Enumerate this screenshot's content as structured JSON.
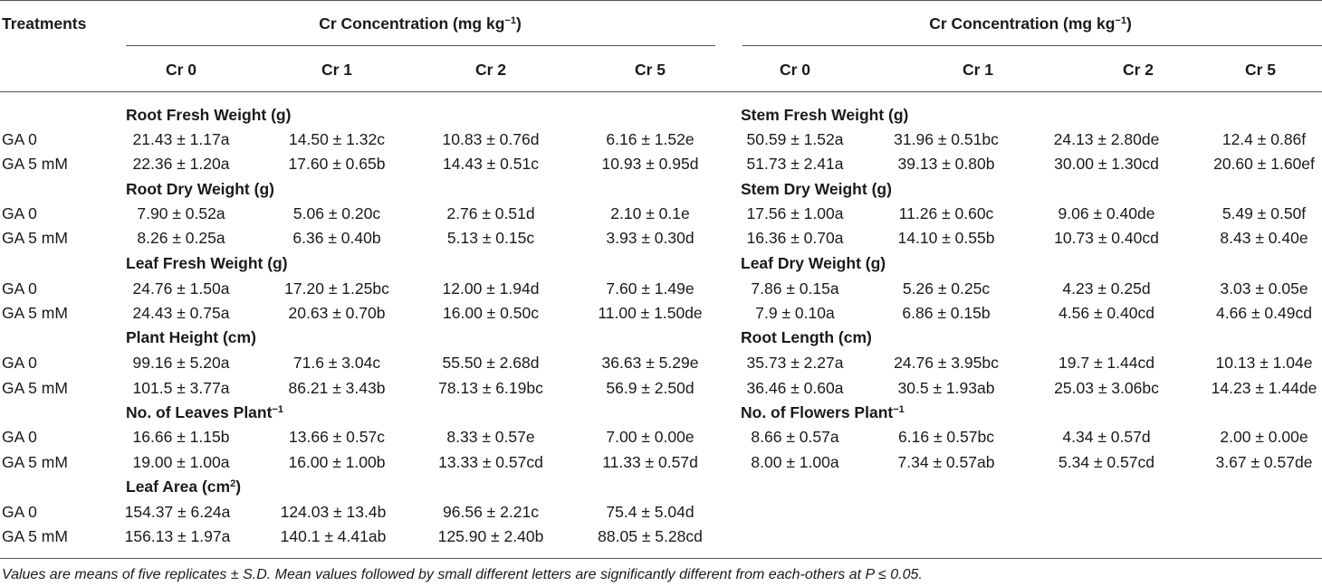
{
  "header": {
    "treatments_label": "Treatments",
    "group_left": {
      "text": "Cr Concentration (mg kg",
      "sup": "−1",
      "close": ")"
    },
    "group_right": {
      "text": "Cr Concentration (mg kg",
      "sup": "−1",
      "close": ")"
    },
    "cols_left": [
      "Cr 0",
      "Cr 1",
      "Cr 2",
      "Cr 5"
    ],
    "cols_right": [
      "Cr 0",
      "Cr 1",
      "Cr 2",
      "Cr 5"
    ]
  },
  "blocks": [
    {
      "left": {
        "title": "Root Fresh Weight (g)",
        "sup": "",
        "rows": [
          {
            "label": "GA 0",
            "values": [
              "21.43 ± 1.17a",
              "14.50 ± 1.32c",
              "10.83 ± 0.76d",
              "6.16 ± 1.52e"
            ]
          },
          {
            "label": "GA 5 mM",
            "values": [
              "22.36 ± 1.20a",
              "17.60 ± 0.65b",
              "14.43 ± 0.51c",
              "10.93 ± 0.95d"
            ]
          }
        ]
      },
      "right": {
        "title": "Stem Fresh Weight (g)",
        "sup": "",
        "rows": [
          {
            "values": [
              "50.59 ± 1.52a",
              "31.96 ± 0.51bc",
              "24.13 ± 2.80de",
              "12.4 ± 0.86f"
            ]
          },
          {
            "values": [
              "51.73 ± 2.41a",
              "39.13 ± 0.80b",
              "30.00 ± 1.30cd",
              "20.60 ± 1.60ef"
            ]
          }
        ]
      }
    },
    {
      "left": {
        "title": "Root Dry Weight (g)",
        "sup": "",
        "rows": [
          {
            "label": "GA 0",
            "values": [
              "7.90 ± 0.52a",
              "5.06 ± 0.20c",
              "2.76 ± 0.51d",
              "2.10 ± 0.1e"
            ]
          },
          {
            "label": "GA 5 mM",
            "values": [
              "8.26 ± 0.25a",
              "6.36 ± 0.40b",
              "5.13 ± 0.15c",
              "3.93 ± 0.30d"
            ]
          }
        ]
      },
      "right": {
        "title": "Stem Dry Weight (g)",
        "sup": "",
        "rows": [
          {
            "values": [
              "17.56 ± 1.00a",
              "11.26 ± 0.60c",
              "9.06 ± 0.40de",
              "5.49 ± 0.50f"
            ]
          },
          {
            "values": [
              "16.36 ± 0.70a",
              "14.10 ± 0.55b",
              "10.73 ± 0.40cd",
              "8.43 ± 0.40e"
            ]
          }
        ]
      }
    },
    {
      "left": {
        "title": "Leaf Fresh Weight (g)",
        "sup": "",
        "rows": [
          {
            "label": "GA 0",
            "values": [
              "24.76 ± 1.50a",
              "17.20 ± 1.25bc",
              "12.00 ± 1.94d",
              "7.60 ± 1.49e"
            ]
          },
          {
            "label": "GA 5 mM",
            "values": [
              "24.43 ± 0.75a",
              "20.63 ± 0.70b",
              "16.00 ± 0.50c",
              "11.00 ± 1.50de"
            ]
          }
        ]
      },
      "right": {
        "title": "Leaf Dry Weight (g)",
        "sup": "",
        "rows": [
          {
            "values": [
              "7.86 ± 0.15a",
              "5.26 ± 0.25c",
              "4.23 ± 0.25d",
              "3.03 ± 0.05e"
            ]
          },
          {
            "values": [
              "7.9 ± 0.10a",
              "6.86 ± 0.15b",
              "4.56 ± 0.40cd",
              "4.66 ± 0.49cd"
            ]
          }
        ]
      }
    },
    {
      "left": {
        "title": "Plant Height (cm)",
        "sup": "",
        "rows": [
          {
            "label": "GA 0",
            "values": [
              "99.16 ± 5.20a",
              "71.6 ± 3.04c",
              "55.50 ± 2.68d",
              "36.63 ± 5.29e"
            ]
          },
          {
            "label": "GA 5 mM",
            "values": [
              "101.5 ± 3.77a",
              "86.21 ± 3.43b",
              "78.13 ± 6.19bc",
              "56.9 ± 2.50d"
            ]
          }
        ]
      },
      "right": {
        "title": "Root Length (cm)",
        "sup": "",
        "rows": [
          {
            "values": [
              "35.73 ± 2.27a",
              "24.76 ± 3.95bc",
              "19.7 ± 1.44cd",
              "10.13 ± 1.04e"
            ]
          },
          {
            "values": [
              "36.46 ± 0.60a",
              "30.5 ± 1.93ab",
              "25.03 ± 3.06bc",
              "14.23 ± 1.44de"
            ]
          }
        ]
      }
    },
    {
      "left": {
        "title": "No. of Leaves Plant",
        "sup": "−1",
        "rows": [
          {
            "label": "GA 0",
            "values": [
              "16.66 ± 1.15b",
              "13.66 ± 0.57c",
              "8.33 ± 0.57e",
              "7.00 ± 0.00e"
            ]
          },
          {
            "label": "GA 5 mM",
            "values": [
              "19.00 ± 1.00a",
              "16.00 ± 1.00b",
              "13.33 ± 0.57cd",
              "11.33 ± 0.57d"
            ]
          }
        ]
      },
      "right": {
        "title": "No. of Flowers Plant",
        "sup": "−1",
        "rows": [
          {
            "values": [
              "8.66 ± 0.57a",
              "6.16 ± 0.57bc",
              "4.34 ± 0.57d",
              "2.00 ± 0.00e"
            ]
          },
          {
            "values": [
              "8.00 ± 1.00a",
              "7.34 ± 0.57ab",
              "5.34 ± 0.57cd",
              "3.67 ± 0.57de"
            ]
          }
        ]
      }
    },
    {
      "left": {
        "title": "Leaf Area (cm",
        "sup": "2",
        "close": ")",
        "rows": [
          {
            "label": "GA 0",
            "values": [
              "154.37 ± 6.24a",
              "124.03 ± 13.4b",
              "96.56 ± 2.21c",
              "75.4 ± 5.04d"
            ]
          },
          {
            "label": "GA 5 mM",
            "values": [
              "156.13 ± 1.97a",
              "140.1 ± 4.41ab",
              "125.90 ± 2.40b",
              "88.05 ± 5.28cd"
            ]
          }
        ]
      },
      "right": null
    }
  ],
  "footnote": "Values are means of five replicates ± S.D. Mean values followed by small different letters are significantly different from each-others at P ≤ 0.05."
}
